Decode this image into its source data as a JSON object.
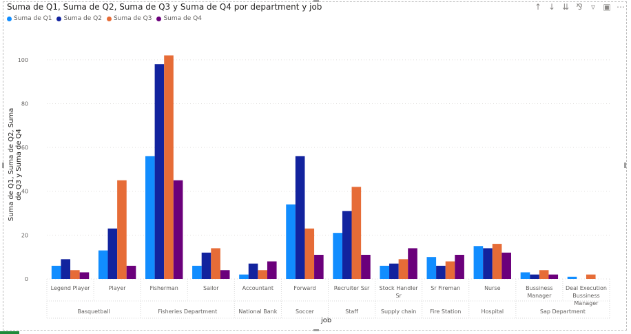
{
  "header": {
    "title": "Suma de Q1, Suma de Q2, Suma de Q3 y Suma de Q4 por department y job"
  },
  "toolbar": {
    "icons": [
      "arrow-up-icon",
      "arrow-down-icon",
      "double-arrow-down-icon",
      "expand-hierarchy-icon",
      "filter-icon",
      "focus-mode-icon",
      "more-options-icon"
    ],
    "more": "⋯"
  },
  "colors": {
    "q1": "#118DFF",
    "q2": "#12239E",
    "q3": "#E66C37",
    "q4": "#6B007B"
  },
  "chart_data": {
    "type": "bar",
    "title": "Suma de Q1, Suma de Q2, Suma de Q3 y Suma de Q4 por department y job",
    "xlabel": "job",
    "ylabel": "Suma de Q1, Suma de Q2, Suma de Q3 y Suma de Q4",
    "ylim": [
      0,
      110
    ],
    "yticks": [
      0,
      20,
      40,
      60,
      80,
      100
    ],
    "grid": true,
    "legend_position": "top-left",
    "categories": [
      "Legend Player",
      "Player",
      "Fisherman",
      "Sailor",
      "Accountant",
      "Forward",
      "Recruiter Ssr",
      "Stock Handler Sr",
      "Sr Fireman",
      "Nurse",
      "Bussiness Manager",
      "Deal Execution Bussiness Manager"
    ],
    "category_lines": [
      [
        "Legend Player"
      ],
      [
        "Player"
      ],
      [
        "Fisherman"
      ],
      [
        "Sailor"
      ],
      [
        "Accountant"
      ],
      [
        "Forward"
      ],
      [
        "Recruiter Ssr"
      ],
      [
        "Stock Handler",
        "Sr"
      ],
      [
        "Sr Fireman"
      ],
      [
        "Nurse"
      ],
      [
        "Bussiness",
        "Manager"
      ],
      [
        "Deal Execution",
        "Bussiness",
        "Manager"
      ]
    ],
    "groups": [
      {
        "name": "Basquetball",
        "span": 2
      },
      {
        "name": "Fisheries Department",
        "span": 2
      },
      {
        "name": "National Bank",
        "span": 1
      },
      {
        "name": "Soccer",
        "span": 1
      },
      {
        "name": "Staff",
        "span": 1
      },
      {
        "name": "Supply chain",
        "span": 1
      },
      {
        "name": "Fire Station",
        "span": 1
      },
      {
        "name": "Hospital",
        "span": 1
      },
      {
        "name": "Sap Department",
        "span": 2
      }
    ],
    "series": [
      {
        "name": "Suma de Q1",
        "values": [
          6,
          13,
          56,
          6,
          2,
          34,
          21,
          6,
          10,
          15,
          3,
          1
        ]
      },
      {
        "name": "Suma de Q2",
        "values": [
          9,
          23,
          98,
          12,
          7,
          56,
          31,
          7,
          6,
          14,
          2,
          0
        ]
      },
      {
        "name": "Suma de Q3",
        "values": [
          4,
          45,
          102,
          14,
          4,
          23,
          42,
          9,
          8,
          16,
          4,
          2
        ]
      },
      {
        "name": "Suma de Q4",
        "values": [
          3,
          6,
          45,
          4,
          8,
          11,
          11,
          14,
          11,
          12,
          2,
          0
        ]
      }
    ]
  }
}
